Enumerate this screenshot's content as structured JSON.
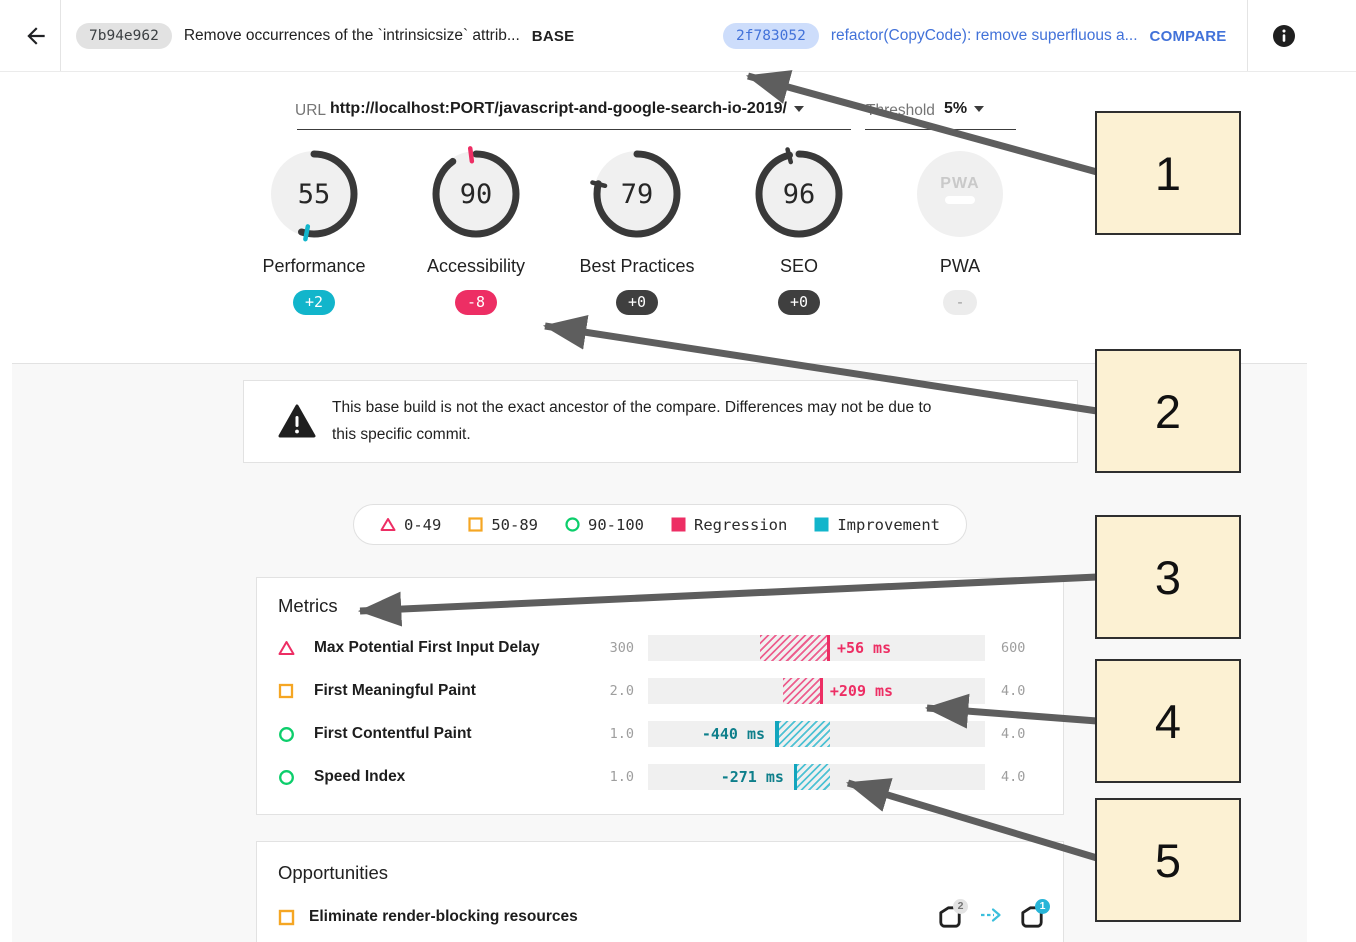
{
  "header": {
    "base": {
      "hash": "7b94e962",
      "message": "Remove occurrences of the `intrinsicsize` attrib...",
      "tag": "BASE"
    },
    "compare": {
      "hash": "2f783052",
      "message": "refactor(CopyCode): remove superfluous a...",
      "tag": "COMPARE"
    },
    "back_icon": "back-arrow",
    "info_icon": "info"
  },
  "url_bar": {
    "url_label": "URL",
    "url_value": "http://localhost:PORT/javascript-and-google-search-io-2019/",
    "threshold_label": "Threshold",
    "threshold_value": "5%"
  },
  "categories": [
    {
      "label": "Performance",
      "score": "55",
      "score_pct": 55,
      "base_pct": 53,
      "delta": "+2",
      "type": "improvement"
    },
    {
      "label": "Accessibility",
      "score": "90",
      "score_pct": 90,
      "base_pct": 98,
      "delta": "-8",
      "type": "regression"
    },
    {
      "label": "Best Practices",
      "score": "79",
      "score_pct": 79,
      "base_pct": 79,
      "delta": "+0",
      "type": "neutral"
    },
    {
      "label": "SEO",
      "score": "96",
      "score_pct": 96,
      "base_pct": 96,
      "delta": "+0",
      "type": "neutral"
    },
    {
      "label": "PWA",
      "score": "",
      "score_pct": 0,
      "base_pct": 0,
      "delta": "-",
      "type": "na",
      "logo_text": "PWA"
    }
  ],
  "warning": {
    "line1": "This base build is not the exact ancestor of the compare. Differences may not be due to",
    "line2": "this specific commit."
  },
  "legend": {
    "items": [
      {
        "shape": "triangle-outline",
        "color": "#ed2e64",
        "label": "0-49"
      },
      {
        "shape": "square-outline",
        "color": "#f5a623",
        "label": "50-89"
      },
      {
        "shape": "circle-outline",
        "color": "#0cce6b",
        "label": "90-100"
      },
      {
        "shape": "square-fill",
        "color": "#ed2e64",
        "label": "Regression"
      },
      {
        "shape": "square-fill",
        "color": "#12b5cb",
        "label": "Improvement"
      }
    ]
  },
  "metrics": {
    "title": "Metrics",
    "rows": [
      {
        "icon": "triangle",
        "label": "Max Potential First Input Delay",
        "min": "300",
        "max": "600",
        "delta": "+56 ms",
        "direction": "regression",
        "band_pct": [
          33.2,
          53.1
        ]
      },
      {
        "icon": "square",
        "label": "First Meaningful Paint",
        "min": "2.0",
        "max": "4.0",
        "delta": "+209 ms",
        "direction": "regression",
        "band_pct": [
          40.1,
          51.0
        ]
      },
      {
        "icon": "circle",
        "label": "First Contentful Paint",
        "min": "1.0",
        "max": "4.0",
        "delta": "-440 ms",
        "direction": "improvement",
        "band_pct": [
          37.7,
          53.1
        ]
      },
      {
        "icon": "circle",
        "label": "Speed Index",
        "min": "1.0",
        "max": "4.0",
        "delta": "-271 ms",
        "direction": "improvement",
        "band_pct": [
          43.3,
          53.1
        ]
      }
    ]
  },
  "opportunities": {
    "title": "Opportunities",
    "row": {
      "icon": "square",
      "label": "Eliminate render-blocking resources",
      "base_count": "2",
      "compare_count": "1",
      "arrow_icon": "dashed-right-arrow"
    }
  },
  "annotations": {
    "boxes": [
      {
        "label": "1"
      },
      {
        "label": "2"
      },
      {
        "label": "3"
      },
      {
        "label": "4"
      },
      {
        "label": "5"
      }
    ]
  },
  "colors": {
    "improvement": "#12b5cb",
    "improvement_text": "#0e7f8b",
    "improvement_line": "#12a5bd",
    "regression": "#ed2e64",
    "neutral_badge": "#3f3f3f",
    "na_badge_bg": "#ececec",
    "na_badge_text": "#9e9e9e",
    "arc": "#393939",
    "gauge_fill": "#f0f0f0",
    "accent_blue": "#4272d9",
    "link_cyan": "#3bbfdc"
  }
}
